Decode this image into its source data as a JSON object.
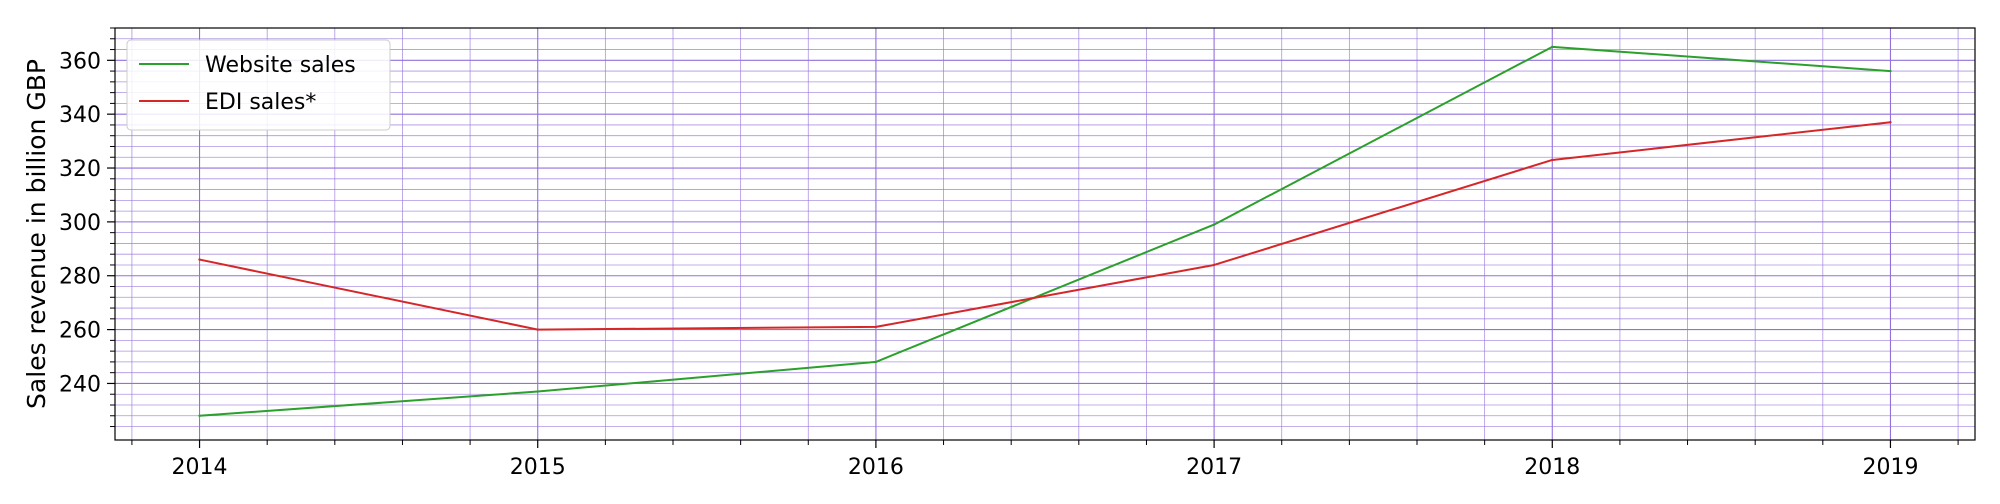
{
  "chart_data": {
    "type": "line",
    "title": "",
    "xlabel": "",
    "ylabel": "Sales revenue in billion GBP",
    "x": [
      2014,
      2015,
      2016,
      2017,
      2018,
      2019
    ],
    "x_tick_labels": [
      "2014",
      "2015",
      "2016",
      "2017",
      "2018",
      "2019"
    ],
    "xlim": [
      2013.75,
      2019.25
    ],
    "y_ticks": [
      240,
      260,
      280,
      300,
      320,
      340,
      360
    ],
    "y_tick_labels": [
      "240",
      "260",
      "280",
      "300",
      "320",
      "340",
      "360"
    ],
    "ylim": [
      219,
      372
    ],
    "grid": true,
    "grid_minor": true,
    "grid_color": "#9370db",
    "legend_position": "top-left",
    "series": [
      {
        "name": "Website sales",
        "color": "#2ca02c",
        "values": [
          228,
          237,
          248,
          299,
          365,
          356
        ]
      },
      {
        "name": "EDI sales*",
        "color": "#d62728",
        "values": [
          286,
          260,
          261,
          284,
          323,
          337
        ]
      }
    ]
  }
}
